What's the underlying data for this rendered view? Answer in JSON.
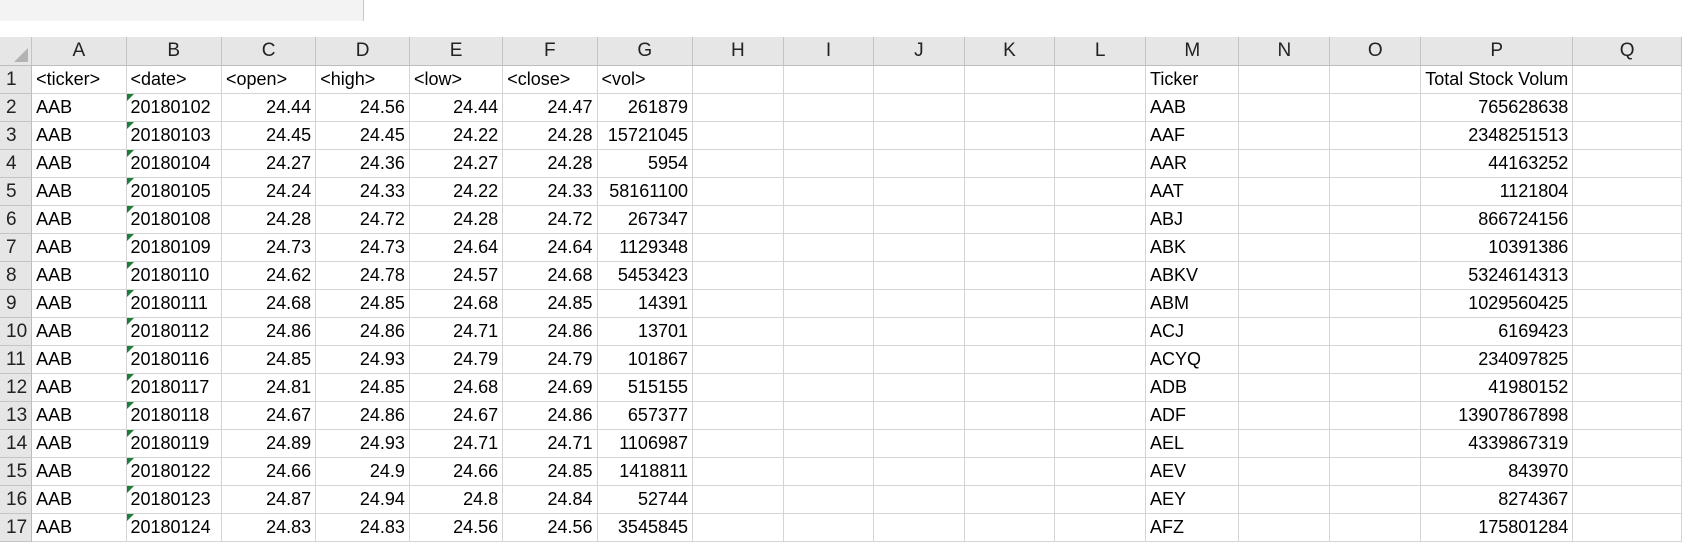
{
  "columns": [
    "A",
    "B",
    "C",
    "D",
    "E",
    "F",
    "G",
    "H",
    "I",
    "J",
    "K",
    "L",
    "M",
    "N",
    "O",
    "P",
    "Q"
  ],
  "headers": {
    "A": "<ticker>",
    "B": "<date>",
    "C": "<open>",
    "D": "<high>",
    "E": "<low>",
    "F": "<close>",
    "G": "<vol>",
    "M": "Ticker",
    "P": "Total Stock Volum"
  },
  "rows": [
    {
      "ticker": "AAB",
      "date": "20180102",
      "open": "24.44",
      "high": "24.56",
      "low": "24.44",
      "close": "24.47",
      "vol": "261879",
      "m": "AAB",
      "p": "765628638"
    },
    {
      "ticker": "AAB",
      "date": "20180103",
      "open": "24.45",
      "high": "24.45",
      "low": "24.22",
      "close": "24.28",
      "vol": "15721045",
      "m": "AAF",
      "p": "2348251513"
    },
    {
      "ticker": "AAB",
      "date": "20180104",
      "open": "24.27",
      "high": "24.36",
      "low": "24.27",
      "close": "24.28",
      "vol": "5954",
      "m": "AAR",
      "p": "44163252"
    },
    {
      "ticker": "AAB",
      "date": "20180105",
      "open": "24.24",
      "high": "24.33",
      "low": "24.22",
      "close": "24.33",
      "vol": "58161100",
      "m": "AAT",
      "p": "1121804"
    },
    {
      "ticker": "AAB",
      "date": "20180108",
      "open": "24.28",
      "high": "24.72",
      "low": "24.28",
      "close": "24.72",
      "vol": "267347",
      "m": "ABJ",
      "p": "866724156"
    },
    {
      "ticker": "AAB",
      "date": "20180109",
      "open": "24.73",
      "high": "24.73",
      "low": "24.64",
      "close": "24.64",
      "vol": "1129348",
      "m": "ABK",
      "p": "10391386"
    },
    {
      "ticker": "AAB",
      "date": "20180110",
      "open": "24.62",
      "high": "24.78",
      "low": "24.57",
      "close": "24.68",
      "vol": "5453423",
      "m": "ABKV",
      "p": "5324614313"
    },
    {
      "ticker": "AAB",
      "date": "20180111",
      "open": "24.68",
      "high": "24.85",
      "low": "24.68",
      "close": "24.85",
      "vol": "14391",
      "m": "ABM",
      "p": "1029560425"
    },
    {
      "ticker": "AAB",
      "date": "20180112",
      "open": "24.86",
      "high": "24.86",
      "low": "24.71",
      "close": "24.86",
      "vol": "13701",
      "m": "ACJ",
      "p": "6169423"
    },
    {
      "ticker": "AAB",
      "date": "20180116",
      "open": "24.85",
      "high": "24.93",
      "low": "24.79",
      "close": "24.79",
      "vol": "101867",
      "m": "ACYQ",
      "p": "234097825"
    },
    {
      "ticker": "AAB",
      "date": "20180117",
      "open": "24.81",
      "high": "24.85",
      "low": "24.68",
      "close": "24.69",
      "vol": "515155",
      "m": "ADB",
      "p": "41980152"
    },
    {
      "ticker": "AAB",
      "date": "20180118",
      "open": "24.67",
      "high": "24.86",
      "low": "24.67",
      "close": "24.86",
      "vol": "657377",
      "m": "ADF",
      "p": "13907867898"
    },
    {
      "ticker": "AAB",
      "date": "20180119",
      "open": "24.89",
      "high": "24.93",
      "low": "24.71",
      "close": "24.71",
      "vol": "1106987",
      "m": "AEL",
      "p": "4339867319"
    },
    {
      "ticker": "AAB",
      "date": "20180122",
      "open": "24.66",
      "high": "24.9",
      "low": "24.66",
      "close": "24.85",
      "vol": "1418811",
      "m": "AEV",
      "p": "843970"
    },
    {
      "ticker": "AAB",
      "date": "20180123",
      "open": "24.87",
      "high": "24.94",
      "low": "24.8",
      "close": "24.84",
      "vol": "52744",
      "m": "AEY",
      "p": "8274367"
    },
    {
      "ticker": "AAB",
      "date": "20180124",
      "open": "24.83",
      "high": "24.83",
      "low": "24.56",
      "close": "24.56",
      "vol": "3545845",
      "m": "AFZ",
      "p": "175801284"
    }
  ]
}
